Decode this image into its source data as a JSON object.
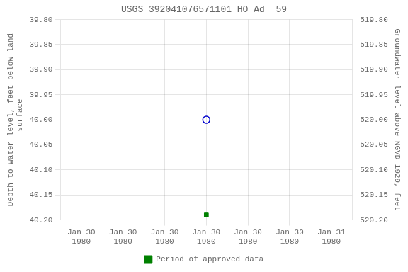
{
  "chart_data": {
    "type": "scatter",
    "title": "USGS 392041076571101 HO Ad  59",
    "y_label": "Depth to water level, feet below land\n  surface",
    "y2_label": "Groundwater level above NGVD 1929, feet",
    "categories": [
      "Jan 30\n1980",
      "Jan 30\n1980",
      "Jan 30\n1980",
      "Jan 30\n1980",
      "Jan 30\n1980",
      "Jan 30\n1980",
      "Jan 31\n1980"
    ],
    "series": [
      {
        "color": "#0000cc",
        "marker": "circle",
        "line_style": "none",
        "values": [
          null,
          null,
          null,
          40.0,
          null,
          null,
          null
        ]
      },
      {
        "name": "Period of approved data",
        "color": "#008000",
        "marker": "square",
        "line_style": "none",
        "values": [
          null,
          null,
          null,
          40.19,
          null,
          null,
          null
        ]
      }
    ],
    "ylim": [
      40.2,
      39.8
    ],
    "yticks": [
      {
        "value": 39.8,
        "label": "39.80"
      },
      39.85,
      {
        "value": 39.9,
        "label": "39.90"
      },
      39.95,
      {
        "value": 40.0,
        "label": "40.00"
      },
      40.05,
      {
        "value": 40.1,
        "label": "40.10"
      },
      40.15,
      {
        "value": 40.2,
        "label": "40.20"
      }
    ],
    "y2lim": [
      520.2,
      519.8
    ],
    "y2ticks": [
      {
        "value": 519.8,
        "label": "519.80"
      },
      519.85,
      {
        "value": 519.9,
        "label": "519.90"
      },
      519.95,
      {
        "value": 520.0,
        "label": "520.00"
      },
      520.05,
      {
        "value": 520.1,
        "label": "520.10"
      },
      520.15,
      {
        "value": 520.2,
        "label": "520.20"
      }
    ],
    "grid": true,
    "legend": "bottom"
  }
}
